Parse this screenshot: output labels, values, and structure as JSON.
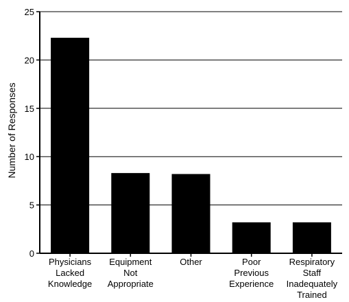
{
  "chart_data": {
    "type": "bar",
    "title": "",
    "xlabel": "",
    "ylabel": "Number of Responses",
    "ylim": [
      0,
      25
    ],
    "yticks": [
      0,
      5,
      10,
      15,
      20,
      25
    ],
    "grid": "horizontal",
    "categories": [
      [
        "Physicians",
        "Lacked",
        "Knowledge"
      ],
      [
        "Equipment",
        "Not",
        "Appropriate"
      ],
      [
        "Other"
      ],
      [
        "Poor",
        "Previous",
        "Experience"
      ],
      [
        "Respiratory",
        "Staff",
        "Inadequately",
        "Trained"
      ]
    ],
    "values": [
      22.3,
      8.3,
      8.2,
      3.2,
      3.2
    ],
    "bar_color": "#000000"
  }
}
